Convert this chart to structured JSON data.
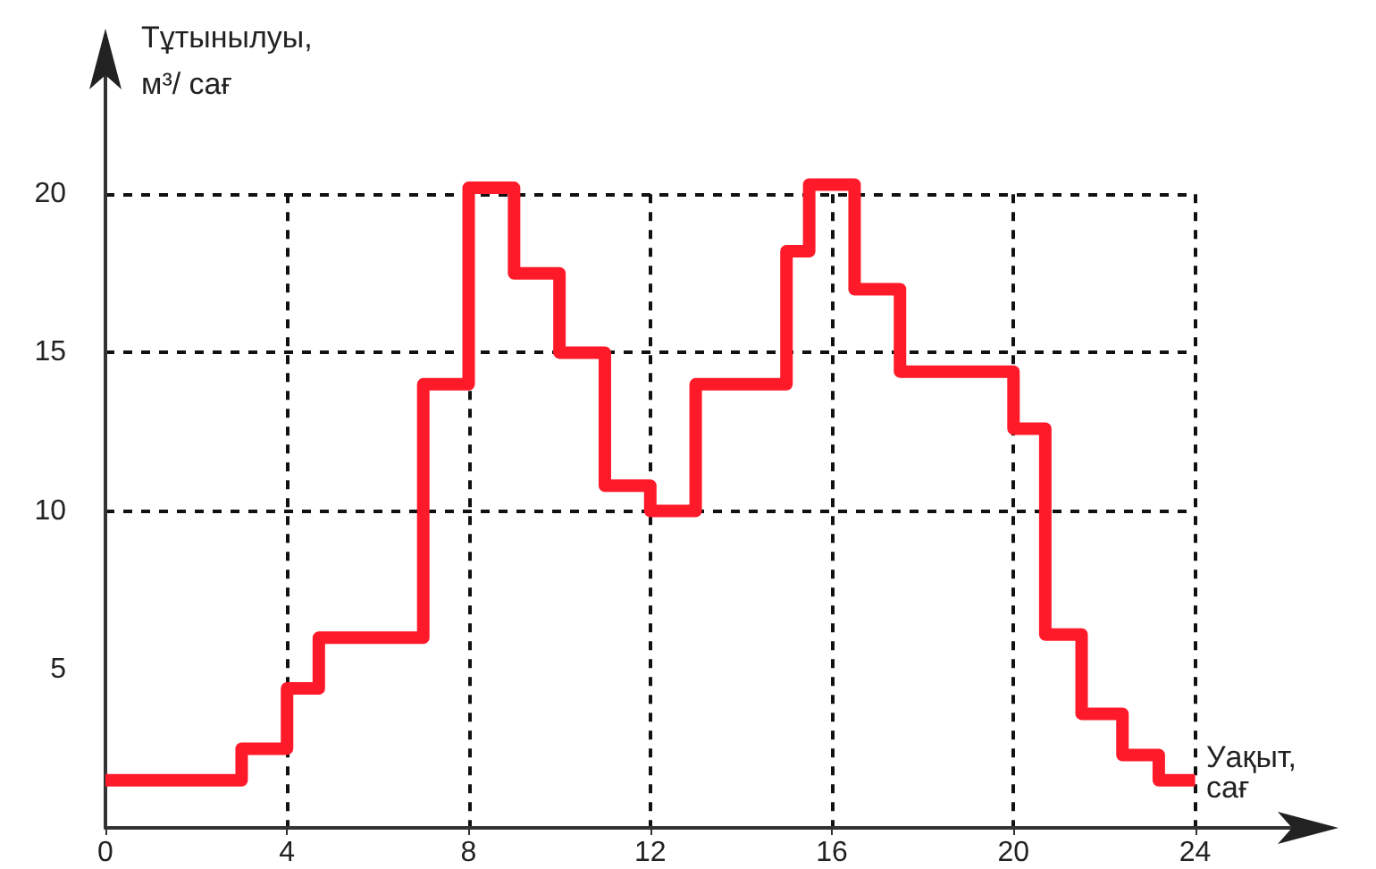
{
  "chart_data": {
    "type": "step",
    "xlabel": "Уақыт, сағ",
    "ylabel": "Тұтынылуы, м³/ сағ",
    "x": [
      0,
      3,
      4,
      4.7,
      7,
      8,
      9,
      10,
      11,
      12,
      13,
      15,
      15.5,
      16.5,
      17.5,
      20,
      20.7,
      21.5,
      22.4,
      23.2,
      24
    ],
    "series": [
      {
        "color": "#ff1a2a",
        "values": [
          1.5,
          2.5,
          4.4,
          6,
          14,
          20.2,
          17.5,
          15,
          10.8,
          10,
          14,
          18.2,
          20.3,
          17,
          14.4,
          12.6,
          6.1,
          3.6,
          2.3,
          1.5,
          1.5
        ]
      }
    ],
    "xlim": [
      0,
      27
    ],
    "ylim": [
      0,
      25
    ],
    "xticks": [
      0,
      4,
      8,
      12,
      16,
      20,
      24
    ],
    "yticks": [
      5,
      10,
      15,
      20
    ],
    "grid": true,
    "marker": "none",
    "line_style": "solid"
  }
}
